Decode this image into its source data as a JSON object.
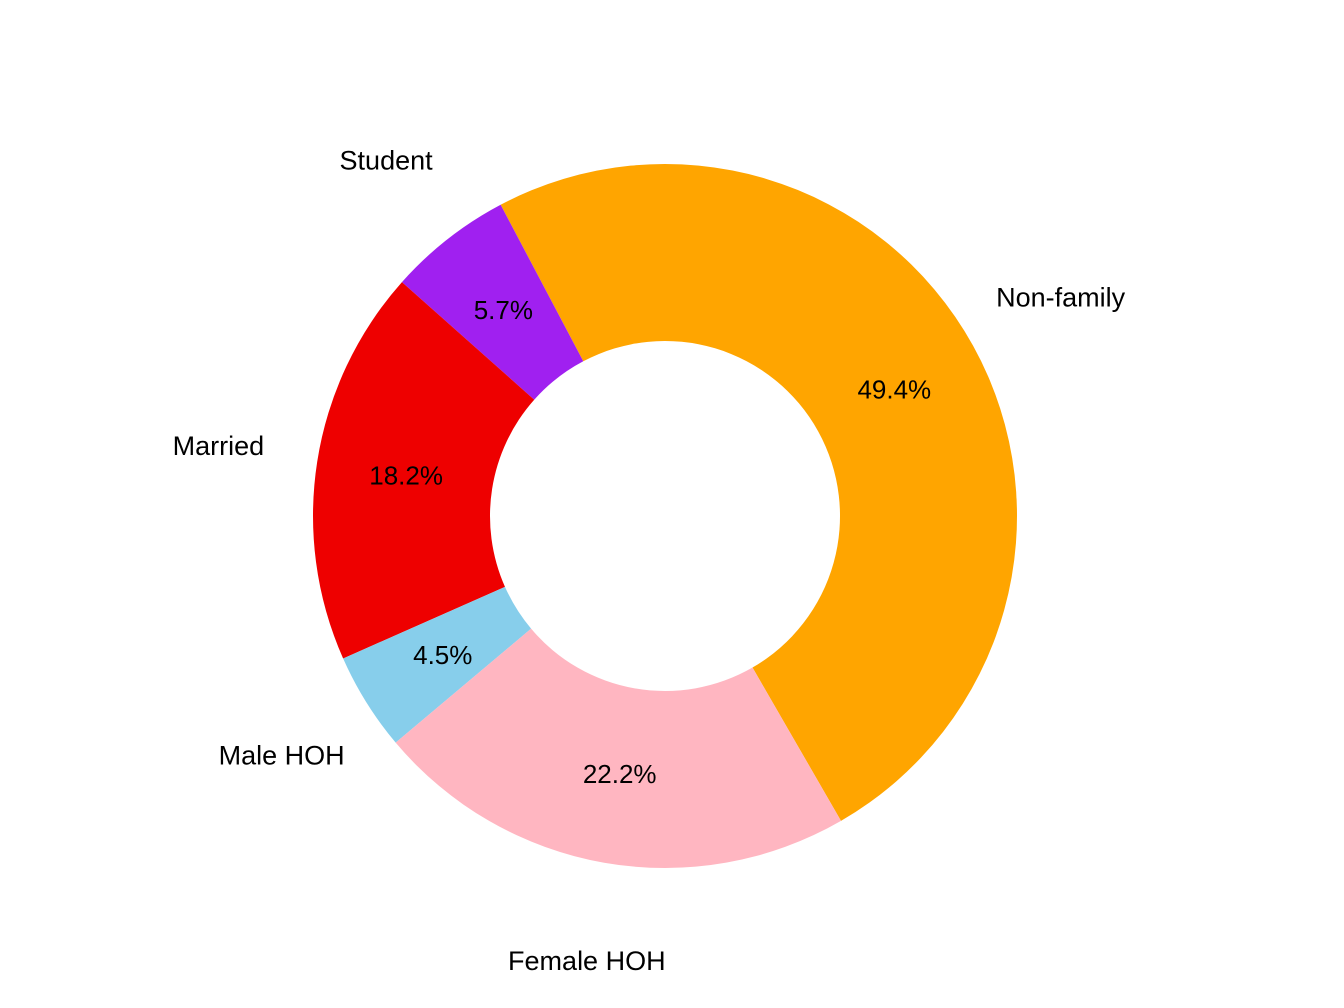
{
  "chart_data": {
    "type": "pie",
    "variant": "donut",
    "title": "",
    "labels": [
      "Non-family",
      "Student",
      "Married",
      "Male HOH",
      "Female HOH"
    ],
    "values": [
      49.4,
      5.7,
      18.2,
      4.5,
      22.2
    ],
    "percent_labels": [
      "49.4%",
      "5.7%",
      "18.2%",
      "4.5%",
      "22.2%"
    ],
    "colors": [
      "#FFA500",
      "#A020F0",
      "#EE0000",
      "#87CEEB",
      "#FFB6C1"
    ],
    "direction": "clockwise",
    "legend": "none"
  }
}
